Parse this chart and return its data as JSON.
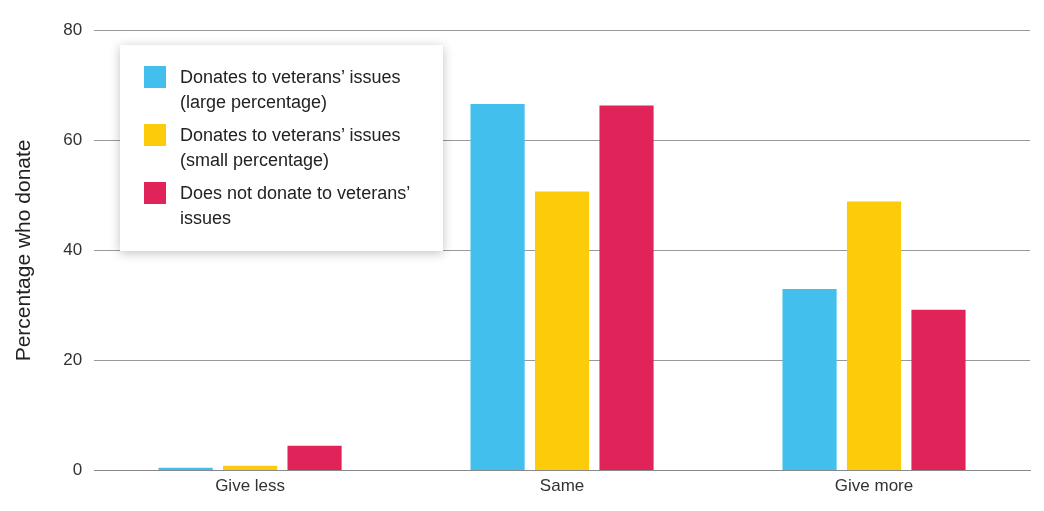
{
  "chart_data": {
    "type": "bar",
    "ylabel": "Percentage who donate",
    "categories": [
      "Give less",
      "Same",
      "Give more"
    ],
    "series": [
      {
        "name": "Donates to veterans’ issues (large percentage)",
        "color": "#43bfee",
        "values": [
          0.5,
          66.6,
          33.0
        ]
      },
      {
        "name": "Donates to veterans’ issues (small percentage)",
        "color": "#fccb0a",
        "values": [
          0.9,
          50.7,
          48.9
        ]
      },
      {
        "name": "Does not donate to veterans’ issues",
        "color": "#e0245a",
        "values": [
          4.5,
          66.3,
          29.2
        ]
      }
    ],
    "ylim": [
      0,
      80
    ],
    "yticks": [
      0,
      20,
      40,
      60,
      80
    ],
    "grid": "y",
    "legend": "top left"
  }
}
